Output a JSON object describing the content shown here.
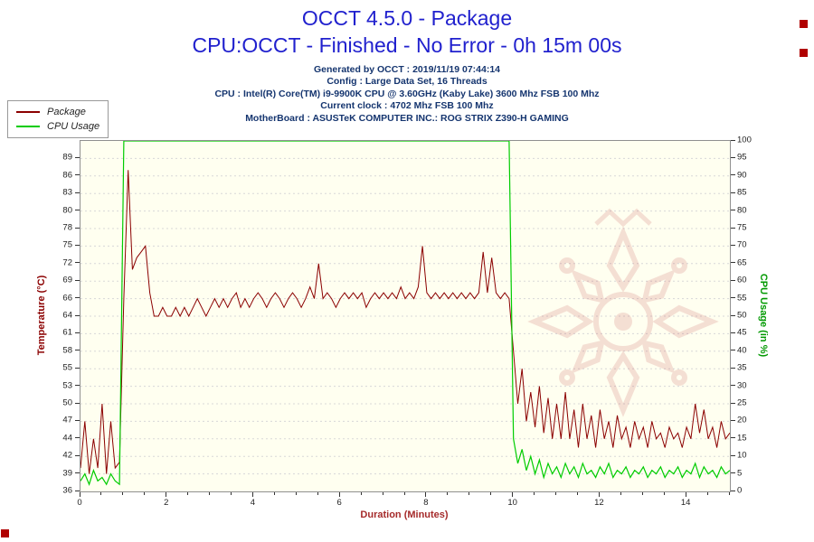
{
  "header": {
    "title": "OCCT 4.5.0 - Package",
    "subtitle": "CPU:OCCT - Finished - No Error - 0h 15m 00s",
    "info_lines": [
      "Generated by OCCT : 2019/11/19 07:44:14",
      "Config : Large Data Set, 16 Threads",
      "CPU : Intel(R) Core(TM) i9-9900K CPU @ 3.60GHz (Kaby Lake) 3600 Mhz FSB 100 Mhz",
      "Current clock : 4702 Mhz FSB 100 Mhz",
      "MotherBoard : ASUSTeK COMPUTER INC.: ROG STRIX Z390-H GAMING"
    ]
  },
  "legend": {
    "items": [
      {
        "label": "Package",
        "color": "#8B0000"
      },
      {
        "label": "CPU Usage",
        "color": "#00CC00"
      }
    ]
  },
  "axes": {
    "x": {
      "label": "Duration (Minutes)",
      "min": 0,
      "max": 15,
      "major_ticks": [
        0,
        2,
        4,
        6,
        8,
        10,
        12,
        14
      ],
      "minor_step": 0.5
    },
    "temp": {
      "label": "Temperature (°C)",
      "color": "#8B0000",
      "ticks": [
        36,
        39,
        42,
        44,
        47,
        50,
        53,
        55,
        58,
        61,
        64,
        66,
        69,
        72,
        75,
        78,
        80,
        83,
        86,
        89
      ]
    },
    "cpu": {
      "label": "CPU Usage (in %)",
      "color": "#009900",
      "min": 0,
      "max": 100,
      "tick_step": 5
    }
  },
  "colors": {
    "title": "#2121CE",
    "info_text": "#15356F",
    "plot_background": "#FFFFF0",
    "gridline": "#D8D8D8",
    "temperature_series": "#8B0000",
    "cpu_series": "#00CC00",
    "x_axis_label": "#A52A2A",
    "watermark": "#C04040",
    "corner_marker": "#B00000"
  },
  "chart_data": {
    "type": "line",
    "title": "OCCT 4.5.0 - Package",
    "xlabel": "Duration (Minutes)",
    "x_range": [
      0,
      15
    ],
    "x_start": 0,
    "x_step": 0.1,
    "grid": true,
    "legend_position": "top-left",
    "y_axes": [
      {
        "id": "temp",
        "label": "Temperature (°C)",
        "side": "left",
        "tick_values_bottom_to_top": [
          36,
          39,
          42,
          44,
          47,
          50,
          53,
          55,
          58,
          61,
          64,
          66,
          69,
          72,
          75,
          78,
          80,
          83,
          86,
          89
        ]
      },
      {
        "id": "cpu",
        "label": "CPU Usage (in %)",
        "side": "right",
        "min": 0,
        "max": 100,
        "tick_step": 5
      }
    ],
    "series": [
      {
        "name": "Package",
        "unit": "°C",
        "axis": "temp",
        "color": "#8B0000",
        "values": [
          40,
          47,
          39,
          44,
          40,
          50,
          39,
          47,
          40,
          41,
          66,
          87,
          71,
          73,
          74,
          75,
          67,
          64,
          64,
          65,
          64,
          64,
          65,
          64,
          65,
          64,
          65,
          66,
          65,
          64,
          65,
          66,
          65,
          66,
          65,
          66,
          67,
          65,
          66,
          65,
          66,
          67,
          66,
          65,
          66,
          67,
          66,
          65,
          66,
          67,
          66,
          65,
          66,
          68,
          66,
          72,
          66,
          67,
          66,
          65,
          66,
          67,
          66,
          67,
          66,
          67,
          65,
          66,
          67,
          66,
          67,
          66,
          67,
          66,
          68,
          66,
          67,
          66,
          68,
          75,
          67,
          66,
          67,
          66,
          67,
          66,
          67,
          66,
          67,
          66,
          67,
          66,
          67,
          74,
          67,
          73,
          67,
          66,
          67,
          66,
          58,
          50,
          55,
          47,
          52,
          46,
          53,
          45,
          51,
          44,
          50,
          44,
          52,
          44,
          49,
          43,
          50,
          44,
          48,
          43,
          49,
          44,
          47,
          43,
          48,
          44,
          46,
          43,
          47,
          44,
          46,
          43,
          47,
          44,
          45,
          43,
          46,
          44,
          45,
          43,
          46,
          44,
          50,
          45,
          49,
          44,
          46,
          43,
          47,
          44,
          45
        ]
      },
      {
        "name": "CPU Usage",
        "unit": "%",
        "axis": "cpu",
        "color": "#00CC00",
        "values": [
          3,
          5,
          2,
          6,
          3,
          4,
          2,
          5,
          3,
          2,
          100,
          100,
          100,
          100,
          100,
          100,
          100,
          100,
          100,
          100,
          100,
          100,
          100,
          100,
          100,
          100,
          100,
          100,
          100,
          100,
          100,
          100,
          100,
          100,
          100,
          100,
          100,
          100,
          100,
          100,
          100,
          100,
          100,
          100,
          100,
          100,
          100,
          100,
          100,
          100,
          100,
          100,
          100,
          100,
          100,
          100,
          100,
          100,
          100,
          100,
          100,
          100,
          100,
          100,
          100,
          100,
          100,
          100,
          100,
          100,
          100,
          100,
          100,
          100,
          100,
          100,
          100,
          100,
          100,
          100,
          100,
          100,
          100,
          100,
          100,
          100,
          100,
          100,
          100,
          100,
          100,
          100,
          100,
          100,
          100,
          100,
          100,
          100,
          100,
          100,
          15,
          8,
          12,
          6,
          10,
          5,
          9,
          4,
          8,
          5,
          7,
          4,
          8,
          5,
          7,
          4,
          8,
          5,
          6,
          4,
          7,
          5,
          8,
          4,
          6,
          5,
          7,
          4,
          6,
          5,
          7,
          4,
          6,
          5,
          7,
          4,
          6,
          5,
          7,
          4,
          6,
          5,
          8,
          4,
          7,
          5,
          6,
          4,
          7,
          5,
          6
        ]
      }
    ]
  }
}
